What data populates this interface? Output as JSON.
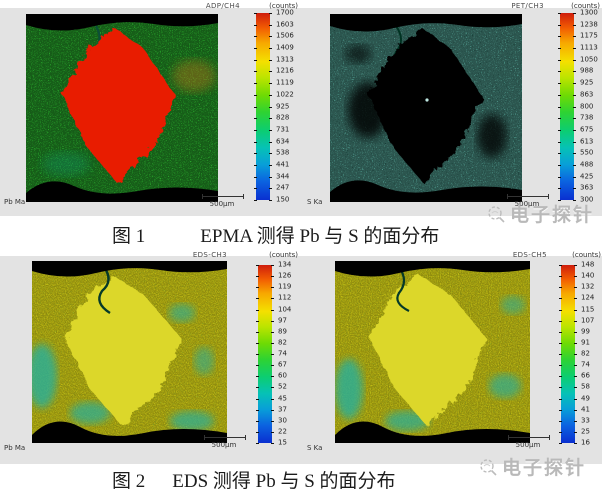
{
  "figures": [
    {
      "caption_label": "图 1",
      "caption_text": "EPMA 测得 Pb 与 S 的面分布",
      "panels": [
        {
          "detector": "ADP/CH4",
          "counts_unit": "(counts)",
          "element": "Pb Ma",
          "scalebar": "500μm",
          "colorbar_ticks": [
            "1700",
            "1603",
            "1506",
            "1409",
            "1313",
            "1216",
            "1119",
            "1022",
            "925",
            "828",
            "731",
            "634",
            "538",
            "441",
            "344",
            "247",
            "150"
          ]
        },
        {
          "detector": "PET/CH3",
          "counts_unit": "(counts)",
          "element": "S Ka",
          "scalebar": "500μm",
          "colorbar_ticks": [
            "1300",
            "1238",
            "1175",
            "1113",
            "1050",
            "988",
            "925",
            "863",
            "800",
            "738",
            "675",
            "613",
            "550",
            "488",
            "425",
            "363",
            "300"
          ]
        }
      ]
    },
    {
      "caption_label": "图 2",
      "caption_text": "EDS 测得 Pb 与 S 的面分布",
      "panels": [
        {
          "detector": "EDS-CH3",
          "counts_unit": "(counts)",
          "element": "Pb Ma",
          "scalebar": "500μm",
          "colorbar_ticks": [
            "134",
            "126",
            "119",
            "112",
            "104",
            "97",
            "89",
            "82",
            "74",
            "67",
            "60",
            "52",
            "45",
            "37",
            "30",
            "22",
            "15"
          ]
        },
        {
          "detector": "EDS-CH5",
          "counts_unit": "(counts)",
          "element": "S Ka",
          "scalebar": "500μm",
          "colorbar_ticks": [
            "148",
            "140",
            "132",
            "124",
            "115",
            "107",
            "99",
            "91",
            "82",
            "74",
            "66",
            "58",
            "49",
            "41",
            "33",
            "25",
            "16"
          ]
        }
      ]
    }
  ],
  "watermark": {
    "text": "电子探针"
  },
  "colors": {
    "panel_bg": "#e3e3e3",
    "map_bg_green": "#32cd36",
    "diamond_red": "#e81a06",
    "map_bg_teal": "#0e5e50",
    "diamond_black": "#020604",
    "map_bg_lime": "#a4cc2c",
    "diamond_yellow": "#dcd72b",
    "colorbar_top": "#cf1d0c",
    "colorbar_bottom": "#0a2fd0"
  }
}
